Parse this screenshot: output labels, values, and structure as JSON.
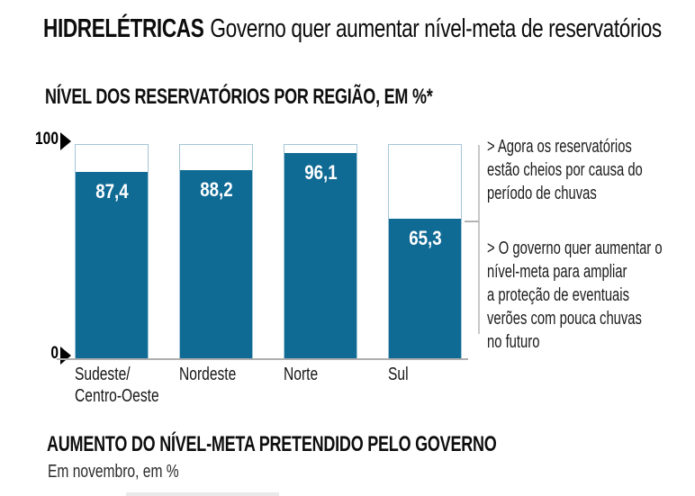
{
  "header": {
    "kicker": "HIDRELÉTRICAS",
    "title": "Governo quer aumentar nível-meta de reservatórios"
  },
  "chart": {
    "section_title": "NÍVEL DOS RESERVATÓRIOS POR REGIÃO, EM %*",
    "y_axis": {
      "max_label": "100",
      "min_label": "0"
    }
  },
  "chart_data": {
    "type": "bar",
    "title": "NÍVEL DOS RESERVATÓRIOS POR REGIÃO, EM %*",
    "unit": "%",
    "categories": [
      "Sudeste/Centro-Oeste",
      "Nordeste",
      "Norte",
      "Sul"
    ],
    "category_display": [
      "Sudeste/\nCentro-Oeste",
      "Nordeste",
      "Norte",
      "Sul"
    ],
    "values": [
      87.4,
      88.2,
      96.1,
      65.3
    ],
    "value_display": [
      "87,4",
      "88,2",
      "96,1",
      "65,3"
    ],
    "ylim": [
      0,
      100
    ],
    "grid": false,
    "legend": null,
    "colors": {
      "bar_fill": "#0f6a94",
      "bar_frame_border": "#a3c6d8",
      "bar_frame_bg": "#ffffff",
      "value_text": "#ffffff",
      "axis_line": "#aeaeae",
      "bracket_line": "#c8c8c8"
    }
  },
  "annotations": {
    "items": [
      {
        "text": "> Agora os reservatórios\nestão cheios por causa do\nperíodo de chuvas"
      },
      {
        "text": "> O governo quer aumentar o\nnível-meta para ampliar\na proteção de eventuais\nverões com pouca chuvas\nno futuro"
      }
    ]
  },
  "footer_section": {
    "title": "AUMENTO DO NÍVEL-META PRETENDIDO PELO GOVERNO",
    "subtitle": "Em novembro, em %"
  }
}
